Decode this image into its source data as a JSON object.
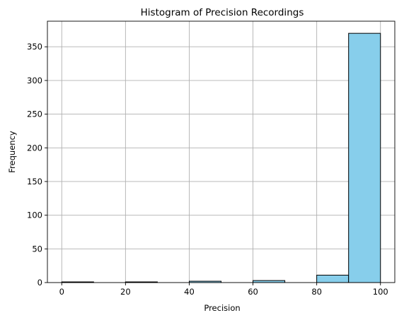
{
  "chart_data": {
    "type": "bar",
    "title": "Histogram of Precision Recordings",
    "xlabel": "Precision",
    "ylabel": "Frequency",
    "xlim": [
      -4.5,
      104.5
    ],
    "ylim": [
      0,
      388
    ],
    "xticks": [
      0,
      20,
      40,
      60,
      80,
      100
    ],
    "yticks": [
      0,
      50,
      100,
      150,
      200,
      250,
      300,
      350
    ],
    "grid": true,
    "bar_color": "#87CEEB",
    "edge_color": "#000000",
    "bins": [
      {
        "start": 0,
        "end": 10,
        "count": 1
      },
      {
        "start": 10,
        "end": 20,
        "count": 0
      },
      {
        "start": 20,
        "end": 30,
        "count": 1
      },
      {
        "start": 30,
        "end": 40,
        "count": 0
      },
      {
        "start": 40,
        "end": 50,
        "count": 2
      },
      {
        "start": 50,
        "end": 60,
        "count": 0
      },
      {
        "start": 60,
        "end": 70,
        "count": 3
      },
      {
        "start": 70,
        "end": 80,
        "count": 0
      },
      {
        "start": 80,
        "end": 90,
        "count": 11
      },
      {
        "start": 90,
        "end": 100,
        "count": 370
      }
    ]
  }
}
